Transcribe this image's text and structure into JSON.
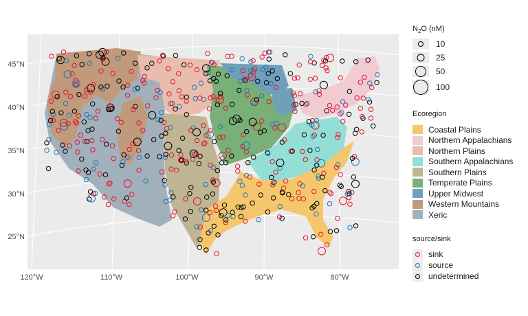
{
  "axes": {
    "lat_labels": [
      "45°N",
      "40°N",
      "35°N",
      "30°N",
      "25°N"
    ],
    "lon_labels": [
      "120°W",
      "110°W",
      "100°W",
      "90°W",
      "80°W"
    ]
  },
  "size_legend": {
    "title_prefix": "N",
    "title_subscript": "2",
    "title_suffix": "O (nM)",
    "entries": [
      {
        "label": "10",
        "value": 10
      },
      {
        "label": "25",
        "value": 25
      },
      {
        "label": "50",
        "value": 50
      },
      {
        "label": "100",
        "value": 100
      }
    ]
  },
  "ecoregion_legend": {
    "title": "Ecoregion",
    "entries": [
      {
        "label": "Coastal Plains",
        "color": "#f5c76c"
      },
      {
        "label": "Northern Appalachians",
        "color": "#f2cad2"
      },
      {
        "label": "Northern Plains",
        "color": "#e8bdae"
      },
      {
        "label": "Southern Appalachians",
        "color": "#94ded5"
      },
      {
        "label": "Southern Plains",
        "color": "#bfb595"
      },
      {
        "label": "Temperate Plains",
        "color": "#78b077"
      },
      {
        "label": "Upper Midwest",
        "color": "#6f9fba"
      },
      {
        "label": "Western Mountains",
        "color": "#c19a7b"
      },
      {
        "label": "Xeric",
        "color": "#a2b0bb"
      }
    ]
  },
  "point_legend": {
    "title": "source/sink",
    "entries": [
      {
        "label": "sink",
        "color": "#e0162b"
      },
      {
        "label": "source",
        "color": "#1f77b4"
      },
      {
        "label": "undetermined",
        "color": "#000000"
      }
    ]
  },
  "colors": {
    "panel_background": "#ebebeb",
    "grid": "#ffffff"
  }
}
